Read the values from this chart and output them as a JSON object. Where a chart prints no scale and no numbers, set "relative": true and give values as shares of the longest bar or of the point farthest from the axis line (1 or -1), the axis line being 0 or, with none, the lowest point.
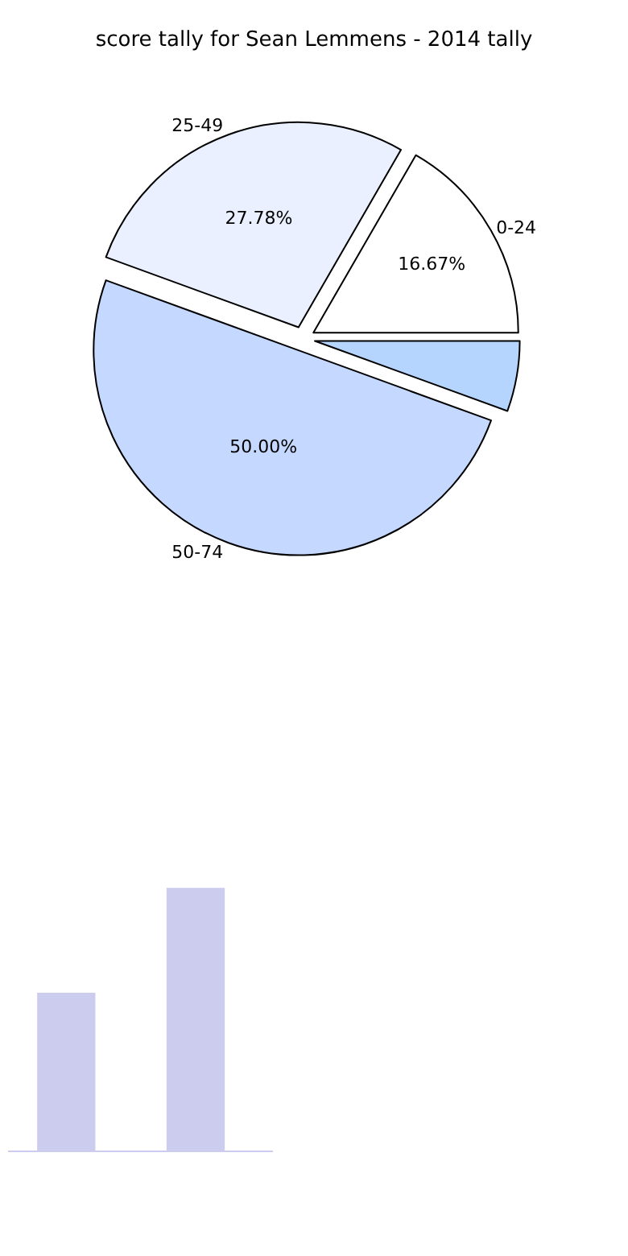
{
  "chart_data": [
    {
      "type": "pie",
      "title": "score tally for Sean Lemmens - 2014 tally",
      "categories": [
        "0-24",
        "25-49",
        "50-74",
        null
      ],
      "values": [
        16.67,
        27.78,
        50.0,
        5.55
      ],
      "colors": [
        "#ffffff",
        "#eaf0ff",
        "#c5d8ff",
        "#b5d5ff"
      ],
      "value_labels": [
        "16.67%",
        "27.78%",
        "50.00%",
        null
      ],
      "legend": false
    },
    {
      "type": "bar",
      "relative": true,
      "categories": [
        null,
        null
      ],
      "values": [
        0.6,
        1
      ],
      "color": "#ccccee"
    }
  ]
}
